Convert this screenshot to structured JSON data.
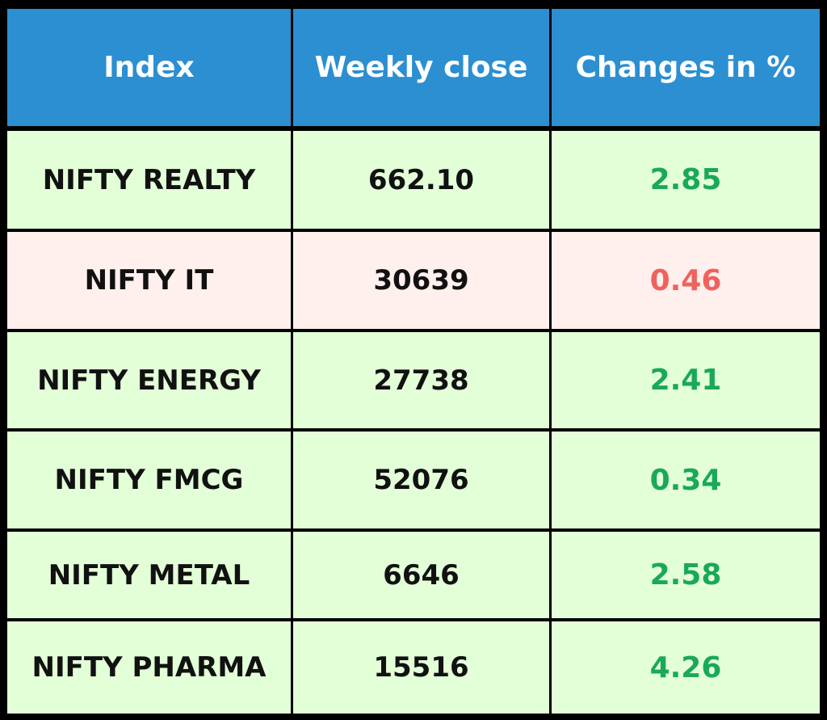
{
  "chart_data": {
    "type": "table",
    "columns": [
      "Index",
      "Weekly close",
      "Changes in %"
    ],
    "rows": [
      {
        "index": "NIFTY REALTY",
        "weekly_close": "662.10",
        "change": "2.85",
        "direction": "up"
      },
      {
        "index": "NIFTY IT",
        "weekly_close": "30639",
        "change": "0.46",
        "direction": "down"
      },
      {
        "index": "NIFTY ENERGY",
        "weekly_close": "27738",
        "change": "2.41",
        "direction": "up"
      },
      {
        "index": "NIFTY FMCG",
        "weekly_close": "52076",
        "change": "0.34",
        "direction": "up"
      },
      {
        "index": "NIFTY METAL",
        "weekly_close": "6646",
        "change": "2.58",
        "direction": "up"
      },
      {
        "index": "NIFTY PHARMA",
        "weekly_close": "15516",
        "change": "4.26",
        "direction": "up"
      }
    ]
  },
  "colors": {
    "header_bg": "#2b8fd1",
    "header_text": "#ffffff",
    "border": "#000000",
    "row_up_bg": "#e3ffd8",
    "row_down_bg": "#fff0ee",
    "text": "#111111",
    "change_up": "#1aa85a",
    "change_down": "#f0625c"
  }
}
